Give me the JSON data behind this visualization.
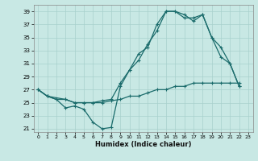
{
  "xlabel": "Humidex (Indice chaleur)",
  "ylabel": "",
  "xlim": [
    -0.5,
    23.5
  ],
  "ylim": [
    20.5,
    40.0
  ],
  "yticks": [
    21,
    23,
    25,
    27,
    29,
    31,
    33,
    35,
    37,
    39
  ],
  "xticks": [
    0,
    1,
    2,
    3,
    4,
    5,
    6,
    7,
    8,
    9,
    10,
    11,
    12,
    13,
    14,
    15,
    16,
    17,
    18,
    19,
    20,
    21,
    22,
    23
  ],
  "bg_color": "#c8e8e4",
  "grid_color": "#a8d0cc",
  "line_color": "#1a6b6b",
  "line1_x": [
    0,
    1,
    2,
    3,
    4,
    5,
    6,
    7,
    8,
    9,
    10,
    11,
    12,
    13,
    14,
    15,
    16,
    17,
    18,
    19,
    20,
    21,
    22
  ],
  "line1_y": [
    27,
    26,
    25.5,
    24.2,
    24.5,
    24,
    22,
    21,
    21.2,
    27.5,
    30,
    32.5,
    33.5,
    37,
    39,
    39,
    38.5,
    37.5,
    38.5,
    35,
    32,
    31,
    27.5
  ],
  "line2_x": [
    0,
    1,
    3,
    4,
    5,
    6,
    7,
    8,
    9,
    10,
    11,
    12,
    13,
    14,
    15,
    16,
    17,
    18,
    19,
    20,
    21,
    22
  ],
  "line2_y": [
    27,
    26,
    25.5,
    25,
    25,
    25,
    25.3,
    25.5,
    28,
    30,
    31.5,
    34,
    36,
    39,
    39,
    38,
    38,
    38.5,
    35,
    33.5,
    31,
    27.5
  ],
  "line3_x": [
    0,
    1,
    2,
    3,
    4,
    5,
    6,
    7,
    8,
    9,
    10,
    11,
    12,
    13,
    14,
    15,
    16,
    17,
    18,
    19,
    20,
    21,
    22
  ],
  "line3_y": [
    27,
    26,
    25.5,
    25.5,
    25,
    25,
    25,
    25,
    25.3,
    25.5,
    26,
    26,
    26.5,
    27,
    27,
    27.5,
    27.5,
    28,
    28,
    28,
    28,
    28,
    28
  ]
}
